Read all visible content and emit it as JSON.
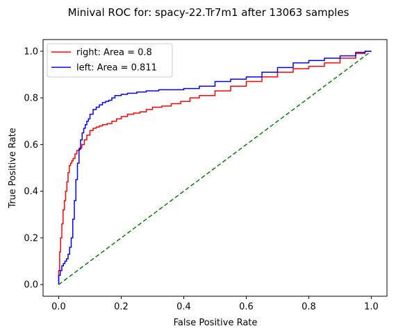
{
  "chart_data": {
    "type": "line",
    "title": "Minival ROC for: spacy-22.Tr7m1 after 13063 samples",
    "xlabel": "False Positive Rate",
    "ylabel": "True Positive Rate",
    "xlim": [
      -0.05,
      1.05
    ],
    "ylim": [
      -0.05,
      1.05
    ],
    "xticks": [
      "0.0",
      "0.2",
      "0.4",
      "0.6",
      "0.8",
      "1.0"
    ],
    "yticks": [
      "0.0",
      "0.2",
      "0.4",
      "0.6",
      "0.8",
      "1.0"
    ],
    "grid": false,
    "legend_position": "top-left",
    "series": [
      {
        "name": "right: Area = 0.8",
        "color": "#ff0000",
        "style": "solid",
        "x": [
          0.0,
          0.003,
          0.006,
          0.01,
          0.014,
          0.018,
          0.022,
          0.026,
          0.03,
          0.034,
          0.038,
          0.042,
          0.046,
          0.052,
          0.058,
          0.066,
          0.074,
          0.082,
          0.09,
          0.1,
          0.11,
          0.12,
          0.13,
          0.14,
          0.155,
          0.17,
          0.185,
          0.2,
          0.22,
          0.24,
          0.26,
          0.28,
          0.3,
          0.33,
          0.36,
          0.39,
          0.42,
          0.45,
          0.5,
          0.55,
          0.6,
          0.65,
          0.7,
          0.75,
          0.8,
          0.85,
          0.9,
          0.95,
          0.98,
          1.0
        ],
        "y": [
          0.0,
          0.06,
          0.14,
          0.2,
          0.26,
          0.32,
          0.36,
          0.4,
          0.44,
          0.48,
          0.51,
          0.52,
          0.53,
          0.54,
          0.56,
          0.575,
          0.585,
          0.6,
          0.62,
          0.64,
          0.66,
          0.67,
          0.675,
          0.68,
          0.685,
          0.69,
          0.7,
          0.71,
          0.72,
          0.73,
          0.735,
          0.74,
          0.75,
          0.76,
          0.765,
          0.775,
          0.785,
          0.8,
          0.81,
          0.83,
          0.85,
          0.87,
          0.89,
          0.91,
          0.925,
          0.935,
          0.95,
          0.97,
          0.99,
          1.0
        ]
      },
      {
        "name": "left: Area = 0.811",
        "color": "#0000ff",
        "style": "solid",
        "x": [
          0.0,
          0.005,
          0.01,
          0.015,
          0.02,
          0.025,
          0.03,
          0.035,
          0.04,
          0.045,
          0.05,
          0.055,
          0.06,
          0.065,
          0.07,
          0.075,
          0.08,
          0.085,
          0.09,
          0.095,
          0.1,
          0.11,
          0.12,
          0.13,
          0.14,
          0.15,
          0.16,
          0.17,
          0.18,
          0.2,
          0.22,
          0.25,
          0.28,
          0.32,
          0.36,
          0.4,
          0.45,
          0.5,
          0.55,
          0.6,
          0.65,
          0.7,
          0.75,
          0.8,
          0.85,
          0.9,
          0.95,
          0.98,
          1.0
        ],
        "y": [
          0.0,
          0.04,
          0.06,
          0.08,
          0.09,
          0.1,
          0.11,
          0.13,
          0.16,
          0.2,
          0.28,
          0.36,
          0.45,
          0.52,
          0.58,
          0.62,
          0.65,
          0.67,
          0.685,
          0.7,
          0.71,
          0.73,
          0.75,
          0.76,
          0.77,
          0.78,
          0.785,
          0.79,
          0.8,
          0.81,
          0.815,
          0.82,
          0.825,
          0.83,
          0.835,
          0.835,
          0.84,
          0.85,
          0.87,
          0.88,
          0.89,
          0.91,
          0.93,
          0.95,
          0.96,
          0.97,
          0.98,
          0.995,
          1.0
        ]
      },
      {
        "color": "#008000",
        "style": "dashed",
        "x": [
          0.0,
          1.0
        ],
        "y": [
          0.0,
          1.0
        ]
      }
    ]
  }
}
